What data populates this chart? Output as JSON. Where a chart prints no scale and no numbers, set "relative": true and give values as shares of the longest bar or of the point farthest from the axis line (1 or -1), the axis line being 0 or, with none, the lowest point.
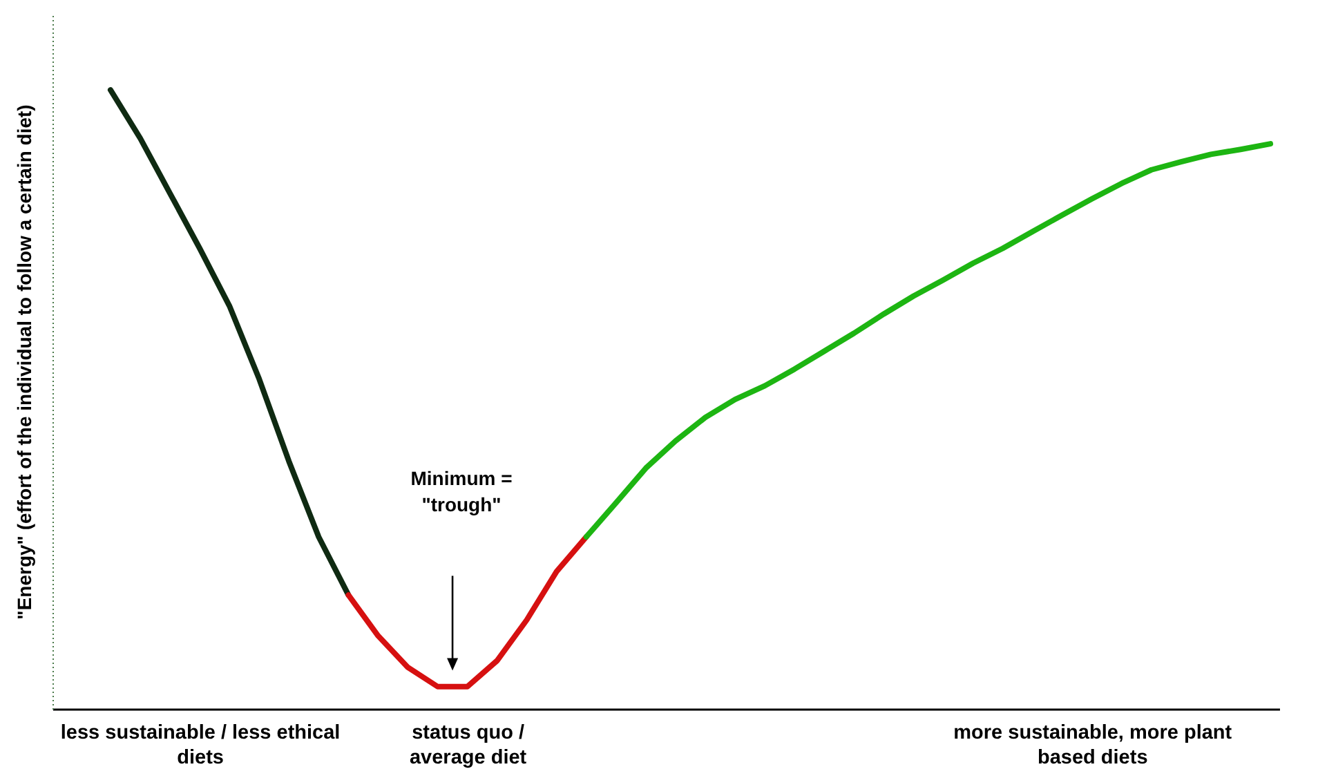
{
  "chart_data": {
    "type": "line",
    "relative": true,
    "ylabel": "\"Energy\" (effort of the individual to follow a certain diet)",
    "categories": [
      null,
      null,
      null,
      "less sustainable / less ethical diets",
      null,
      null,
      null,
      null,
      null,
      null,
      null,
      null,
      "status quo / average diet",
      null,
      null,
      null,
      null,
      null,
      null,
      null,
      null,
      null,
      null,
      null,
      null,
      null,
      null,
      null,
      null,
      null,
      null,
      null,
      null,
      "more sustainable, more plant based diets",
      null,
      null,
      null,
      null,
      null,
      null
    ],
    "series": [
      {
        "color": "#0f2a12",
        "values": [
          1.0,
          0.922,
          0.833,
          0.744,
          0.651,
          0.533,
          0.4,
          0.278,
          0.184,
          null,
          null,
          null,
          null,
          null,
          null,
          null,
          null,
          null,
          null,
          null,
          null,
          null,
          null,
          null,
          null,
          null,
          null,
          null,
          null,
          null,
          null,
          null,
          null,
          null,
          null,
          null,
          null,
          null,
          null,
          null
        ]
      },
      {
        "color": "#d61010",
        "values": [
          null,
          null,
          null,
          null,
          null,
          null,
          null,
          null,
          0.184,
          0.118,
          0.067,
          0.036,
          0.036,
          0.078,
          0.144,
          0.222,
          0.278,
          null,
          null,
          null,
          null,
          null,
          null,
          null,
          null,
          null,
          null,
          null,
          null,
          null,
          null,
          null,
          null,
          null,
          null,
          null,
          null,
          null,
          null,
          null
        ]
      },
      {
        "color": "#1db512",
        "values": [
          null,
          null,
          null,
          null,
          null,
          null,
          null,
          null,
          null,
          null,
          null,
          null,
          null,
          null,
          null,
          null,
          0.278,
          0.333,
          0.389,
          0.433,
          0.471,
          0.5,
          0.522,
          0.549,
          0.578,
          0.607,
          0.638,
          0.667,
          0.693,
          0.72,
          0.744,
          0.771,
          0.798,
          0.824,
          0.849,
          0.871,
          0.884,
          0.896,
          0.904,
          0.913
        ]
      }
    ],
    "annotations": [
      "Minimum = \"trough\""
    ],
    "grid": false,
    "marker": "none",
    "line_style": "solid"
  }
}
